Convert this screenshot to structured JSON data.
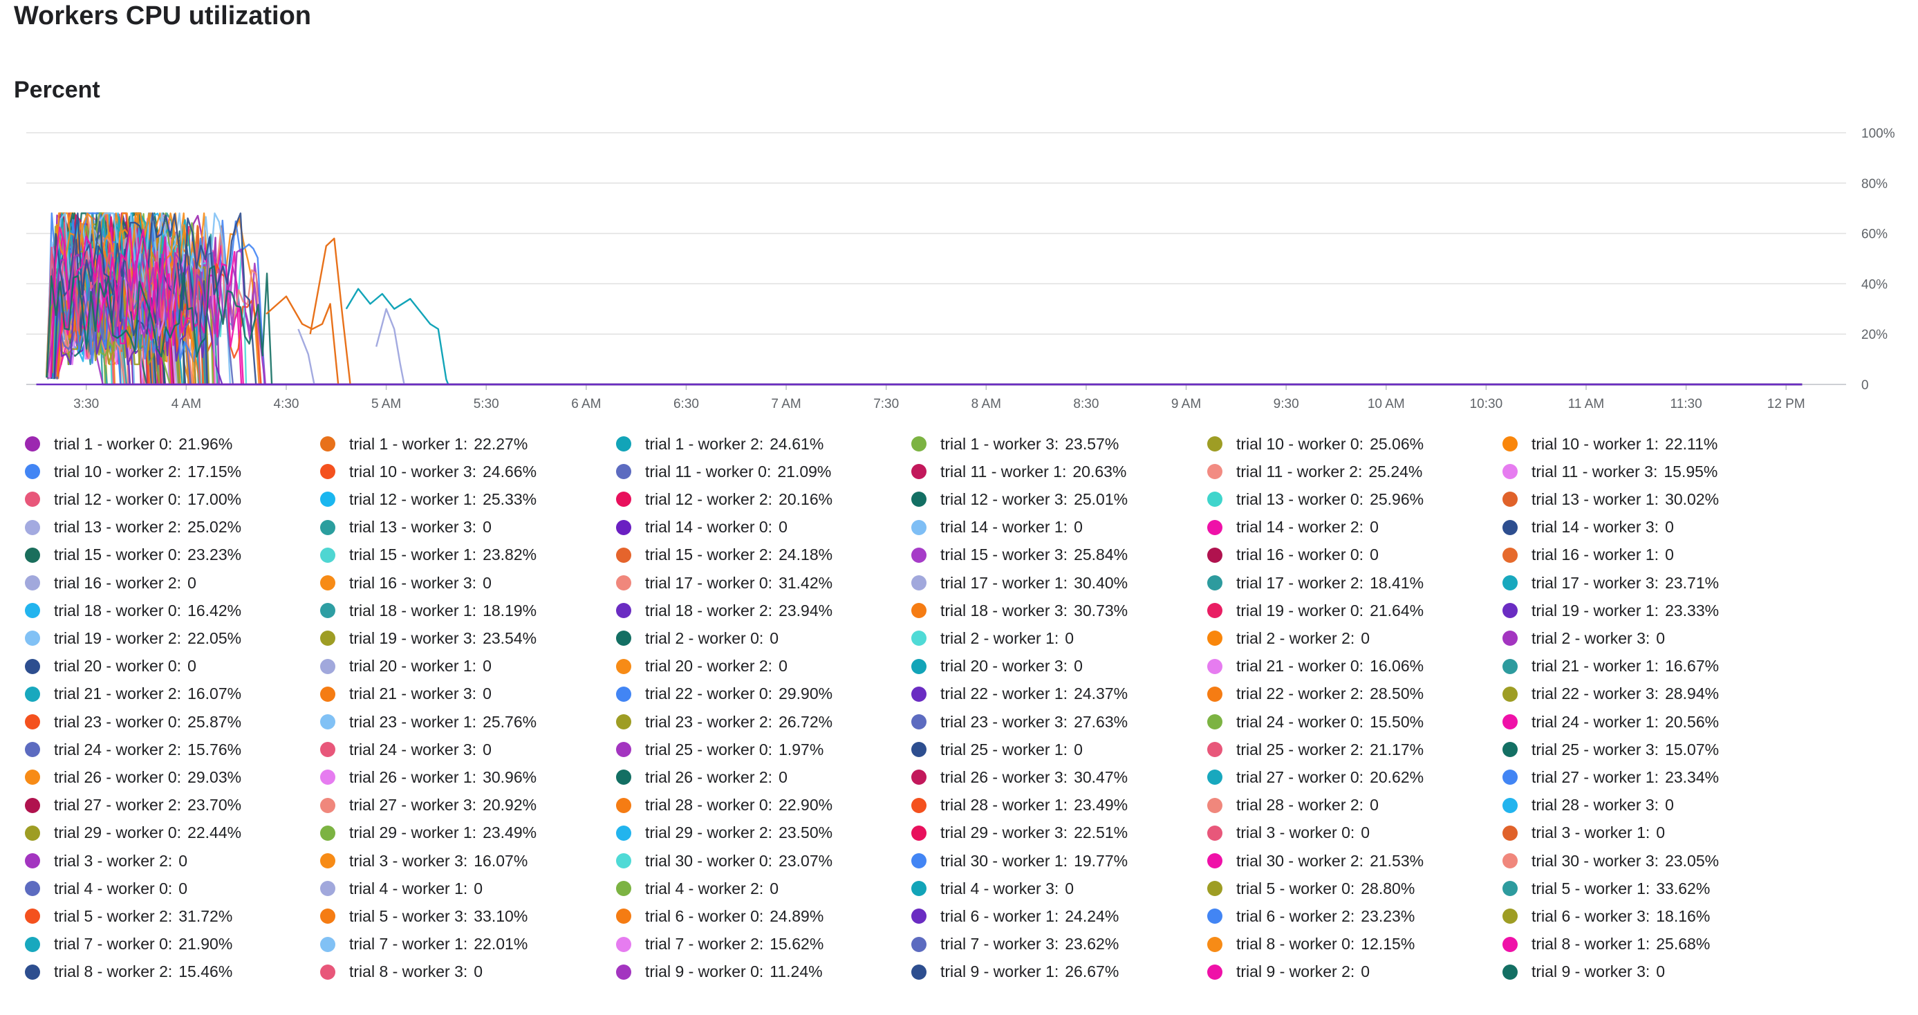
{
  "page": {
    "title": "Workers CPU utilization",
    "subtitle": "Percent"
  },
  "chart_data": {
    "type": "line",
    "title": "Workers CPU utilization",
    "ylabel": "Percent",
    "xlabel": "",
    "ylim": [
      0,
      100
    ],
    "y_ticks": [
      "0",
      "20%",
      "40%",
      "60%",
      "80%",
      "100%"
    ],
    "y_tick_values": [
      0,
      20,
      40,
      60,
      80,
      100
    ],
    "x_range": [
      3.2,
      12.3
    ],
    "x_ticks": [
      "3:30",
      "4 AM",
      "4:30",
      "5 AM",
      "5:30",
      "6 AM",
      "6:30",
      "7 AM",
      "7:30",
      "8 AM",
      "8:30",
      "9 AM",
      "9:30",
      "10 AM",
      "10:30",
      "11 AM",
      "11:30",
      "12 PM"
    ],
    "x_tick_values": [
      3.5,
      4,
      4.5,
      5,
      5.5,
      6,
      6.5,
      7,
      7.5,
      8,
      8.5,
      9,
      9.5,
      10,
      10.5,
      11,
      11.5,
      12
    ],
    "grid": true,
    "legend_position": "bottom",
    "series": [
      {
        "name": "trial 1 - worker 0",
        "value": "21.96%",
        "color": "#9c27b0"
      },
      {
        "name": "trial 1 - worker 1",
        "value": "22.27%",
        "color": "#e8711a"
      },
      {
        "name": "trial 1 - worker 2",
        "value": "24.61%",
        "color": "#12a4b8"
      },
      {
        "name": "trial 1 - worker 3",
        "value": "23.57%",
        "color": "#7cb342"
      },
      {
        "name": "trial 10 - worker 0",
        "value": "25.06%",
        "color": "#9e9d24"
      },
      {
        "name": "trial 10 - worker 1",
        "value": "22.11%",
        "color": "#f9860b"
      },
      {
        "name": "trial 10 - worker 2",
        "value": "17.15%",
        "color": "#4285f4"
      },
      {
        "name": "trial 10 - worker 3",
        "value": "24.66%",
        "color": "#f4511e"
      },
      {
        "name": "trial 11 - worker 0",
        "value": "21.09%",
        "color": "#5c6bc0"
      },
      {
        "name": "trial 11 - worker 1",
        "value": "20.63%",
        "color": "#c2185b"
      },
      {
        "name": "trial 11 - worker 2",
        "value": "25.24%",
        "color": "#f28b82"
      },
      {
        "name": "trial 11 - worker 3",
        "value": "15.95%",
        "color": "#e67cf0"
      },
      {
        "name": "trial 12 - worker 0",
        "value": "17.00%",
        "color": "#e8577a"
      },
      {
        "name": "trial 12 - worker 1",
        "value": "25.33%",
        "color": "#1ab6ef"
      },
      {
        "name": "trial 12 - worker 2",
        "value": "20.16%",
        "color": "#e8105c"
      },
      {
        "name": "trial 12 - worker 3",
        "value": "25.01%",
        "color": "#136f63"
      },
      {
        "name": "trial 13 - worker 0",
        "value": "25.96%",
        "color": "#3fd5cc"
      },
      {
        "name": "trial 13 - worker 1",
        "value": "30.02%",
        "color": "#e0622a"
      },
      {
        "name": "trial 13 - worker 2",
        "value": "25.02%",
        "color": "#a3aae0"
      },
      {
        "name": "trial 13 - worker 3",
        "value": "0",
        "color": "#2b9e9e"
      },
      {
        "name": "trial 14 - worker 0",
        "value": "0",
        "color": "#6a1fc2"
      },
      {
        "name": "trial 14 - worker 1",
        "value": "0",
        "color": "#7ebef5"
      },
      {
        "name": "trial 14 - worker 2",
        "value": "0",
        "color": "#ef11a8"
      },
      {
        "name": "trial 14 - worker 3",
        "value": "0",
        "color": "#2d4e8f"
      },
      {
        "name": "trial 15 - worker 0",
        "value": "23.23%",
        "color": "#1a6e5c"
      },
      {
        "name": "trial 15 - worker 1",
        "value": "23.82%",
        "color": "#4fd6d2"
      },
      {
        "name": "trial 15 - worker 2",
        "value": "24.18%",
        "color": "#e5642c"
      },
      {
        "name": "trial 15 - worker 3",
        "value": "25.84%",
        "color": "#a63cc8"
      },
      {
        "name": "trial 16 - worker 0",
        "value": "0",
        "color": "#b0124e"
      },
      {
        "name": "trial 16 - worker 1",
        "value": "0",
        "color": "#e66a2c"
      },
      {
        "name": "trial 16 - worker 2",
        "value": "0",
        "color": "#a1a8dc"
      },
      {
        "name": "trial 16 - worker 3",
        "value": "0",
        "color": "#f78b16"
      },
      {
        "name": "trial 17 - worker 0",
        "value": "31.42%",
        "color": "#f0877c"
      },
      {
        "name": "trial 17 - worker 1",
        "value": "30.40%",
        "color": "#a1a8dc"
      },
      {
        "name": "trial 17 - worker 2",
        "value": "18.41%",
        "color": "#2d9b9e"
      },
      {
        "name": "trial 17 - worker 3",
        "value": "23.71%",
        "color": "#18a8be"
      },
      {
        "name": "trial 18 - worker 0",
        "value": "16.42%",
        "color": "#22b4ee"
      },
      {
        "name": "trial 18 - worker 1",
        "value": "18.19%",
        "color": "#2e9ea3"
      },
      {
        "name": "trial 18 - worker 2",
        "value": "23.94%",
        "color": "#6a2cc2"
      },
      {
        "name": "trial 18 - worker 3",
        "value": "30.73%",
        "color": "#f57c13"
      },
      {
        "name": "trial 19 - worker 0",
        "value": "21.64%",
        "color": "#e91e63"
      },
      {
        "name": "trial 19 - worker 1",
        "value": "23.33%",
        "color": "#6a2cc2"
      },
      {
        "name": "trial 19 - worker 2",
        "value": "22.05%",
        "color": "#81c1f5"
      },
      {
        "name": "trial 19 - worker 3",
        "value": "23.54%",
        "color": "#9e9d24"
      },
      {
        "name": "trial 2 - worker 0",
        "value": "0",
        "color": "#136f63"
      },
      {
        "name": "trial 2 - worker 1",
        "value": "0",
        "color": "#4fdad6"
      },
      {
        "name": "trial 2 - worker 2",
        "value": "0",
        "color": "#f9860b"
      },
      {
        "name": "trial 2 - worker 3",
        "value": "0",
        "color": "#a335c0"
      },
      {
        "name": "trial 20 - worker 0",
        "value": "0",
        "color": "#2d4e8f"
      },
      {
        "name": "trial 20 - worker 1",
        "value": "0",
        "color": "#a1a8dc"
      },
      {
        "name": "trial 20 - worker 2",
        "value": "0",
        "color": "#f78b16"
      },
      {
        "name": "trial 20 - worker 3",
        "value": "0",
        "color": "#12a4b8"
      },
      {
        "name": "trial 21 - worker 0",
        "value": "16.06%",
        "color": "#e67cf0"
      },
      {
        "name": "trial 21 - worker 1",
        "value": "16.67%",
        "color": "#2d9b9e"
      },
      {
        "name": "trial 21 - worker 2",
        "value": "16.07%",
        "color": "#18a8be"
      },
      {
        "name": "trial 21 - worker 3",
        "value": "0",
        "color": "#f57c13"
      },
      {
        "name": "trial 22 - worker 0",
        "value": "29.90%",
        "color": "#4285f4"
      },
      {
        "name": "trial 22 - worker 1",
        "value": "24.37%",
        "color": "#6a2cc2"
      },
      {
        "name": "trial 22 - worker 2",
        "value": "28.50%",
        "color": "#f57c13"
      },
      {
        "name": "trial 22 - worker 3",
        "value": "28.94%",
        "color": "#9e9d24"
      },
      {
        "name": "trial 23 - worker 0",
        "value": "25.87%",
        "color": "#f4511e"
      },
      {
        "name": "trial 23 - worker 1",
        "value": "25.76%",
        "color": "#81c1f5"
      },
      {
        "name": "trial 23 - worker 2",
        "value": "26.72%",
        "color": "#9e9d24"
      },
      {
        "name": "trial 23 - worker 3",
        "value": "27.63%",
        "color": "#5c6bc0"
      },
      {
        "name": "trial 24 - worker 0",
        "value": "15.50%",
        "color": "#7cb342"
      },
      {
        "name": "trial 24 - worker 1",
        "value": "20.56%",
        "color": "#ef11a8"
      },
      {
        "name": "trial 24 - worker 2",
        "value": "15.76%",
        "color": "#5c6bc0"
      },
      {
        "name": "trial 24 - worker 3",
        "value": "0",
        "color": "#e8577a"
      },
      {
        "name": "trial 25 - worker 0",
        "value": "1.97%",
        "color": "#a335c0"
      },
      {
        "name": "trial 25 - worker 1",
        "value": "0",
        "color": "#2d4e8f"
      },
      {
        "name": "trial 25 - worker 2",
        "value": "21.17%",
        "color": "#e8577a"
      },
      {
        "name": "trial 25 - worker 3",
        "value": "15.07%",
        "color": "#136f63"
      },
      {
        "name": "trial 26 - worker 0",
        "value": "29.03%",
        "color": "#f78b16"
      },
      {
        "name": "trial 26 - worker 1",
        "value": "30.96%",
        "color": "#e67cf0"
      },
      {
        "name": "trial 26 - worker 2",
        "value": "0",
        "color": "#136f63"
      },
      {
        "name": "trial 26 - worker 3",
        "value": "30.47%",
        "color": "#c2185b"
      },
      {
        "name": "trial 27 - worker 0",
        "value": "20.62%",
        "color": "#18a8be"
      },
      {
        "name": "trial 27 - worker 1",
        "value": "23.34%",
        "color": "#4285f4"
      },
      {
        "name": "trial 27 - worker 2",
        "value": "23.70%",
        "color": "#b0124e"
      },
      {
        "name": "trial 27 - worker 3",
        "value": "20.92%",
        "color": "#f0877c"
      },
      {
        "name": "trial 28 - worker 0",
        "value": "22.90%",
        "color": "#f57c13"
      },
      {
        "name": "trial 28 - worker 1",
        "value": "23.49%",
        "color": "#f4511e"
      },
      {
        "name": "trial 28 - worker 2",
        "value": "0",
        "color": "#f0877c"
      },
      {
        "name": "trial 28 - worker 3",
        "value": "0",
        "color": "#22b4ee"
      },
      {
        "name": "trial 29 - worker 0",
        "value": "22.44%",
        "color": "#9e9d24"
      },
      {
        "name": "trial 29 - worker 1",
        "value": "23.49%",
        "color": "#7cb342"
      },
      {
        "name": "trial 29 - worker 2",
        "value": "23.50%",
        "color": "#22b4ee"
      },
      {
        "name": "trial 29 - worker 3",
        "value": "22.51%",
        "color": "#e8105c"
      },
      {
        "name": "trial 3 - worker 0",
        "value": "0",
        "color": "#e8577a"
      },
      {
        "name": "trial 3 - worker 1",
        "value": "0",
        "color": "#e0622a"
      },
      {
        "name": "trial 3 - worker 2",
        "value": "0",
        "color": "#a335c0"
      },
      {
        "name": "trial 3 - worker 3",
        "value": "16.07%",
        "color": "#f78b16"
      },
      {
        "name": "trial 30 - worker 0",
        "value": "23.07%",
        "color": "#4fdad6"
      },
      {
        "name": "trial 30 - worker 1",
        "value": "19.77%",
        "color": "#4285f4"
      },
      {
        "name": "trial 30 - worker 2",
        "value": "21.53%",
        "color": "#ef11a8"
      },
      {
        "name": "trial 30 - worker 3",
        "value": "23.05%",
        "color": "#f0877c"
      },
      {
        "name": "trial 4 - worker 0",
        "value": "0",
        "color": "#5c6bc0"
      },
      {
        "name": "trial 4 - worker 1",
        "value": "0",
        "color": "#a1a8dc"
      },
      {
        "name": "trial 4 - worker 2",
        "value": "0",
        "color": "#7cb342"
      },
      {
        "name": "trial 4 - worker 3",
        "value": "0",
        "color": "#12a4b8"
      },
      {
        "name": "trial 5 - worker 0",
        "value": "28.80%",
        "color": "#9e9d24"
      },
      {
        "name": "trial 5 - worker 1",
        "value": "33.62%",
        "color": "#2d9b9e"
      },
      {
        "name": "trial 5 - worker 2",
        "value": "31.72%",
        "color": "#f4511e"
      },
      {
        "name": "trial 5 - worker 3",
        "value": "33.10%",
        "color": "#f57c13"
      },
      {
        "name": "trial 6 - worker 0",
        "value": "24.89%",
        "color": "#f57c13"
      },
      {
        "name": "trial 6 - worker 1",
        "value": "24.24%",
        "color": "#6a2cc2"
      },
      {
        "name": "trial 6 - worker 2",
        "value": "23.23%",
        "color": "#4285f4"
      },
      {
        "name": "trial 6 - worker 3",
        "value": "18.16%",
        "color": "#9e9d24"
      },
      {
        "name": "trial 7 - worker 0",
        "value": "21.90%",
        "color": "#18a8be"
      },
      {
        "name": "trial 7 - worker 1",
        "value": "22.01%",
        "color": "#81c1f5"
      },
      {
        "name": "trial 7 - worker 2",
        "value": "15.62%",
        "color": "#e67cf0"
      },
      {
        "name": "trial 7 - worker 3",
        "value": "23.62%",
        "color": "#5c6bc0"
      },
      {
        "name": "trial 8 - worker 0",
        "value": "12.15%",
        "color": "#f78b16"
      },
      {
        "name": "trial 8 - worker 1",
        "value": "25.68%",
        "color": "#ef11a8"
      },
      {
        "name": "trial 8 - worker 2",
        "value": "15.46%",
        "color": "#2d4e8f"
      },
      {
        "name": "trial 8 - worker 3",
        "value": "0",
        "color": "#e8577a"
      },
      {
        "name": "trial 9 - worker 0",
        "value": "11.24%",
        "color": "#a335c0"
      },
      {
        "name": "trial 9 - worker 1",
        "value": "26.67%",
        "color": "#2d4e8f"
      },
      {
        "name": "trial 9 - worker 2",
        "value": "0",
        "color": "#ef11a8"
      },
      {
        "name": "trial 9 - worker 3",
        "value": "0",
        "color": "#136f63"
      }
    ]
  }
}
